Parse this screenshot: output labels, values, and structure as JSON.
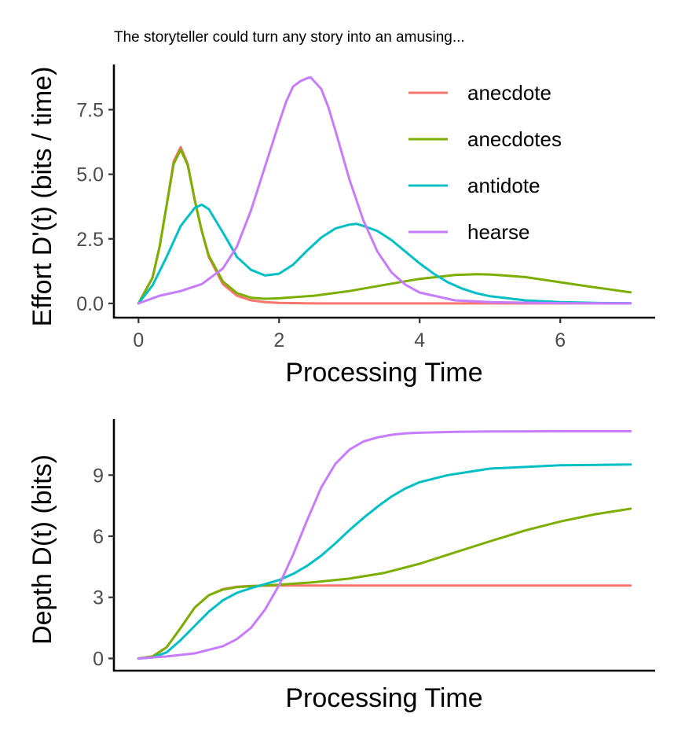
{
  "title": "The storyteller could turn any story into an amusing...",
  "colors": {
    "anecdote": "#F8766D",
    "anecdotes": "#7CAE00",
    "antidote": "#00BFC4",
    "hearse": "#C77CFF"
  },
  "chart_data": [
    {
      "type": "line",
      "xlabel": "Processing Time",
      "ylabel": "Effort D'(t) (bits / time)",
      "xlim": [
        -0.35,
        7.35
      ],
      "ylim": [
        -0.55,
        9.25
      ],
      "xticks": [
        0,
        2,
        4,
        6
      ],
      "xtick_labels": [
        "0",
        "2",
        "4",
        "6"
      ],
      "yticks": [
        0.0,
        2.5,
        5.0,
        7.5
      ],
      "ytick_labels": [
        "0.0",
        "2.5",
        "5.0",
        "7.5"
      ],
      "legend": "top-right",
      "grid": false,
      "series": [
        {
          "name": "anecdote",
          "x": [
            0,
            0.2,
            0.3,
            0.4,
            0.5,
            0.6,
            0.7,
            0.8,
            0.9,
            1.0,
            1.2,
            1.4,
            1.6,
            1.8,
            2.0,
            2.5,
            3.0,
            4.0,
            5.0,
            6.0,
            7.0
          ],
          "y": [
            0,
            1.0,
            2.2,
            3.8,
            5.5,
            6.05,
            5.4,
            4.0,
            2.8,
            1.8,
            0.75,
            0.3,
            0.12,
            0.05,
            0.02,
            0.0,
            0.0,
            0.0,
            0.0,
            0.0,
            0.0
          ]
        },
        {
          "name": "anecdotes",
          "x": [
            0,
            0.2,
            0.3,
            0.4,
            0.5,
            0.6,
            0.7,
            0.8,
            0.9,
            1.0,
            1.2,
            1.4,
            1.6,
            1.8,
            2.0,
            2.5,
            3.0,
            3.5,
            4.0,
            4.5,
            4.8,
            5.0,
            5.5,
            6.0,
            6.5,
            7.0
          ],
          "y": [
            0,
            1.0,
            2.2,
            3.8,
            5.4,
            5.95,
            5.35,
            4.0,
            2.8,
            1.85,
            0.85,
            0.4,
            0.22,
            0.18,
            0.2,
            0.3,
            0.48,
            0.72,
            0.95,
            1.1,
            1.13,
            1.12,
            1.02,
            0.82,
            0.62,
            0.43
          ]
        },
        {
          "name": "antidote",
          "x": [
            0,
            0.2,
            0.4,
            0.6,
            0.8,
            0.9,
            1.0,
            1.2,
            1.4,
            1.6,
            1.8,
            2.0,
            2.2,
            2.4,
            2.6,
            2.8,
            3.0,
            3.1,
            3.2,
            3.4,
            3.6,
            3.8,
            4.0,
            4.2,
            4.4,
            4.6,
            4.8,
            5.0,
            5.5,
            6.0,
            6.5,
            7.0
          ],
          "y": [
            0,
            0.7,
            1.8,
            3.0,
            3.7,
            3.82,
            3.65,
            2.75,
            1.8,
            1.3,
            1.08,
            1.15,
            1.5,
            2.05,
            2.55,
            2.9,
            3.05,
            3.08,
            3.0,
            2.8,
            2.45,
            2.0,
            1.55,
            1.15,
            0.82,
            0.58,
            0.4,
            0.28,
            0.12,
            0.05,
            0.02,
            0.01
          ]
        },
        {
          "name": "hearse",
          "x": [
            0,
            0.3,
            0.6,
            0.9,
            1.2,
            1.4,
            1.6,
            1.8,
            2.0,
            2.1,
            2.2,
            2.3,
            2.4,
            2.45,
            2.5,
            2.6,
            2.7,
            2.8,
            3.0,
            3.2,
            3.4,
            3.6,
            3.8,
            4.0,
            4.5,
            5.0,
            6.0,
            7.0
          ],
          "y": [
            0,
            0.3,
            0.48,
            0.75,
            1.35,
            2.2,
            3.6,
            5.3,
            7.0,
            7.8,
            8.4,
            8.6,
            8.72,
            8.75,
            8.6,
            8.3,
            7.6,
            6.7,
            4.8,
            3.2,
            2.0,
            1.2,
            0.72,
            0.42,
            0.12,
            0.05,
            0.01,
            0.0
          ]
        }
      ]
    },
    {
      "type": "line",
      "xlabel": "Processing Time",
      "ylabel": "Depth D(t) (bits)",
      "xlim": [
        -0.35,
        7.35
      ],
      "ylim": [
        -0.6,
        11.75
      ],
      "yticks": [
        0,
        3,
        6,
        9
      ],
      "ytick_labels": [
        "0",
        "3",
        "6",
        "9"
      ],
      "grid": false,
      "series": [
        {
          "name": "anecdote",
          "x": [
            0,
            0.2,
            0.4,
            0.6,
            0.8,
            1.0,
            1.2,
            1.4,
            1.6,
            2.0,
            3.0,
            4.0,
            5.0,
            6.0,
            7.0
          ],
          "y": [
            0,
            0.1,
            0.55,
            1.5,
            2.5,
            3.1,
            3.4,
            3.52,
            3.56,
            3.58,
            3.58,
            3.58,
            3.58,
            3.58,
            3.58
          ]
        },
        {
          "name": "anecdotes",
          "x": [
            0,
            0.2,
            0.4,
            0.6,
            0.8,
            1.0,
            1.2,
            1.4,
            1.6,
            2.0,
            2.5,
            3.0,
            3.5,
            4.0,
            4.5,
            5.0,
            5.5,
            6.0,
            6.5,
            7.0
          ],
          "y": [
            0,
            0.1,
            0.55,
            1.5,
            2.5,
            3.1,
            3.38,
            3.5,
            3.55,
            3.62,
            3.74,
            3.92,
            4.2,
            4.65,
            5.2,
            5.75,
            6.28,
            6.72,
            7.08,
            7.35
          ]
        },
        {
          "name": "antidote",
          "x": [
            0,
            0.2,
            0.4,
            0.6,
            0.8,
            1.0,
            1.2,
            1.4,
            1.6,
            1.8,
            2.0,
            2.2,
            2.4,
            2.6,
            2.8,
            3.0,
            3.2,
            3.4,
            3.6,
            3.8,
            4.0,
            4.4,
            5.0,
            6.0,
            7.0
          ],
          "y": [
            0,
            0.05,
            0.3,
            0.9,
            1.6,
            2.3,
            2.85,
            3.22,
            3.45,
            3.65,
            3.85,
            4.15,
            4.55,
            5.05,
            5.65,
            6.3,
            6.9,
            7.45,
            7.95,
            8.35,
            8.65,
            9.0,
            9.32,
            9.48,
            9.52
          ]
        },
        {
          "name": "hearse",
          "x": [
            0,
            0.4,
            0.8,
            1.2,
            1.4,
            1.6,
            1.8,
            2.0,
            2.2,
            2.4,
            2.6,
            2.8,
            3.0,
            3.2,
            3.4,
            3.6,
            3.8,
            4.0,
            4.5,
            5.0,
            6.0,
            7.0
          ],
          "y": [
            0,
            0.1,
            0.25,
            0.6,
            0.95,
            1.5,
            2.4,
            3.6,
            5.1,
            6.8,
            8.4,
            9.55,
            10.25,
            10.65,
            10.85,
            10.98,
            11.05,
            11.08,
            11.12,
            11.14,
            11.15,
            11.15
          ]
        }
      ]
    }
  ]
}
